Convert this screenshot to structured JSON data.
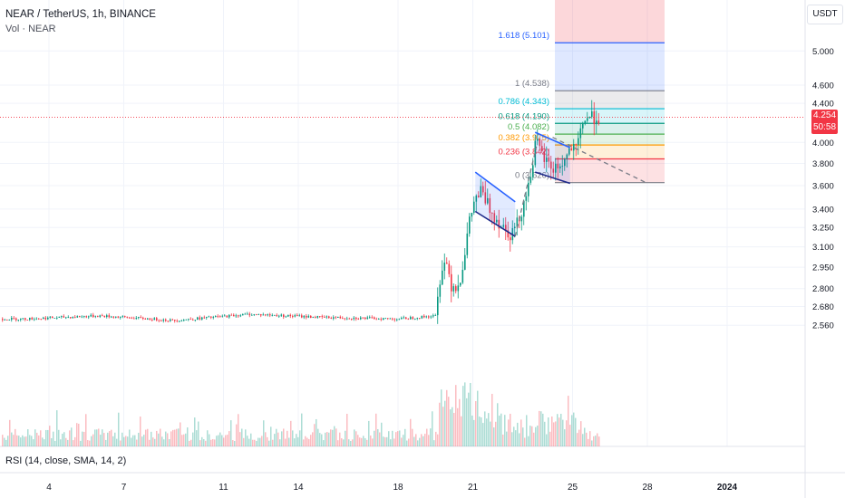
{
  "header": {
    "title": "NEAR / TetherUS, 1h, BINANCE",
    "volume_label": "Vol · NEAR"
  },
  "indicator": {
    "rsi_label": "RSI (14, close, SMA, 14, 2)"
  },
  "price_scale": {
    "currency_button": "USDT",
    "ticks": [
      "5.000",
      "4.600",
      "4.400",
      "4.000",
      "3.800",
      "3.600",
      "3.400",
      "3.250",
      "3.100",
      "2.950",
      "2.800",
      "2.680",
      "2.560"
    ],
    "current_price": "4.254",
    "countdown": "50:58",
    "current_color": "#f23645"
  },
  "chart_data": {
    "type": "candlestick",
    "symbol": "NEAR / TetherUS",
    "interval": "1h",
    "exchange": "BINANCE",
    "y_scale": "log",
    "x_tick_labels": [
      "4",
      "7",
      "11",
      "14",
      "18",
      "21",
      "25",
      "28",
      "2024"
    ],
    "price_key_points": [
      {
        "day": 3.0,
        "price": 2.6
      },
      {
        "day": 6.0,
        "price": 2.62
      },
      {
        "day": 9.0,
        "price": 2.59
      },
      {
        "day": 12.0,
        "price": 2.63
      },
      {
        "day": 15.0,
        "price": 2.61
      },
      {
        "day": 18.0,
        "price": 2.6
      },
      {
        "day": 19.5,
        "price": 2.62
      },
      {
        "day": 19.7,
        "price": 2.95
      },
      {
        "day": 19.9,
        "price": 3.0
      },
      {
        "day": 20.1,
        "price": 2.83
      },
      {
        "day": 20.4,
        "price": 2.82
      },
      {
        "day": 20.6,
        "price": 3.0
      },
      {
        "day": 20.8,
        "price": 3.25
      },
      {
        "day": 21.0,
        "price": 3.45
      },
      {
        "day": 21.3,
        "price": 3.55
      },
      {
        "day": 21.6,
        "price": 3.42
      },
      {
        "day": 22.0,
        "price": 3.3
      },
      {
        "day": 22.5,
        "price": 3.2
      },
      {
        "day": 22.8,
        "price": 3.3
      },
      {
        "day": 23.2,
        "price": 3.6
      },
      {
        "day": 23.5,
        "price": 4.0
      },
      {
        "day": 23.8,
        "price": 3.85
      },
      {
        "day": 24.2,
        "price": 3.75
      },
      {
        "day": 24.6,
        "price": 3.8
      },
      {
        "day": 24.9,
        "price": 3.95
      },
      {
        "day": 25.1,
        "price": 3.9
      },
      {
        "day": 25.3,
        "price": 4.1
      },
      {
        "day": 25.45,
        "price": 4.254
      }
    ],
    "volume_bars": "low (~2-5%) baseline, spike around day 20 (~12%)",
    "fibonacci": {
      "levels": [
        {
          "ratio": "0",
          "price": 3.626,
          "label": "0 (3.626)",
          "color": "#787b86"
        },
        {
          "ratio": "0.236",
          "price": 3.842,
          "label": "0.236 (3.842)",
          "color": "#f23645"
        },
        {
          "ratio": "0.382",
          "price": 3.975,
          "label": "0.382 (3.975)",
          "color": "#ff9800"
        },
        {
          "ratio": "0.5",
          "price": 4.082,
          "label": "0.5 (4.082)",
          "color": "#4caf50"
        },
        {
          "ratio": "0.618",
          "price": 4.19,
          "label": "0.618 (4.190)",
          "color": "#089981"
        },
        {
          "ratio": "0.786",
          "price": 4.343,
          "label": "0.786 (4.343)",
          "color": "#00bcd4"
        },
        {
          "ratio": "1",
          "price": 4.538,
          "label": "1 (4.538)",
          "color": "#787b86"
        },
        {
          "ratio": "1.618",
          "price": 5.101,
          "label": "1.618 (5.101)",
          "color": "#2962ff"
        }
      ]
    },
    "channels": [
      {
        "name": "first-flag",
        "start_day": 21.1,
        "end_day": 22.7,
        "top_start": 3.72,
        "top_end": 3.46,
        "bottom_start": 3.38,
        "bottom_end": 3.18
      },
      {
        "name": "second-flag",
        "start_day": 23.5,
        "end_day": 24.9,
        "top_start": 4.1,
        "top_end": 3.95,
        "bottom_start": 3.72,
        "bottom_end": 3.62
      }
    ],
    "dashed_projection": [
      {
        "day": 22.7,
        "price": 3.18
      },
      {
        "day": 23.55,
        "price": 3.96
      }
    ],
    "dashed_projection_2": [
      {
        "day": 24.2,
        "price": 4.05
      },
      {
        "day": 28.0,
        "price": 3.62
      }
    ]
  }
}
